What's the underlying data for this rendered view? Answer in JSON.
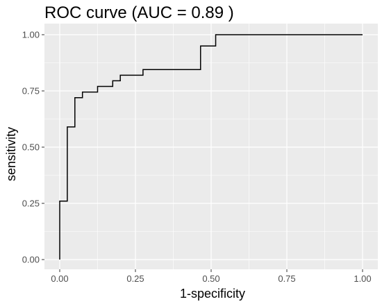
{
  "chart_data": {
    "type": "line",
    "title": "ROC curve (AUC = 0.89 )",
    "xlabel": "1-specificity",
    "ylabel": "sensitivity",
    "xlim": [
      0,
      1
    ],
    "ylim": [
      0,
      1
    ],
    "grid": true,
    "background": "#ebebeb",
    "grid_color": "#ffffff",
    "line_color": "#000000",
    "x_ticks": [
      {
        "value": 0.0,
        "label": "0.00"
      },
      {
        "value": 0.25,
        "label": "0.25"
      },
      {
        "value": 0.5,
        "label": "0.50"
      },
      {
        "value": 0.75,
        "label": "0.75"
      },
      {
        "value": 1.0,
        "label": "1.00"
      }
    ],
    "y_ticks": [
      {
        "value": 0.0,
        "label": "0.00"
      },
      {
        "value": 0.25,
        "label": "0.25"
      },
      {
        "value": 0.5,
        "label": "0.50"
      },
      {
        "value": 0.75,
        "label": "0.75"
      },
      {
        "value": 1.0,
        "label": "1.00"
      }
    ],
    "series": [
      {
        "step": true,
        "x": [
          0.0,
          0.0,
          0.025,
          0.025,
          0.05,
          0.05,
          0.075,
          0.075,
          0.125,
          0.125,
          0.15,
          0.175,
          0.2,
          0.2,
          0.275,
          0.275,
          0.465,
          0.465,
          0.515,
          0.515,
          1.0
        ],
        "y": [
          0.0,
          0.26,
          0.26,
          0.59,
          0.59,
          0.72,
          0.72,
          0.745,
          0.745,
          0.77,
          0.77,
          0.795,
          0.795,
          0.82,
          0.82,
          0.845,
          0.845,
          0.95,
          0.95,
          1.0,
          1.0
        ]
      }
    ]
  }
}
